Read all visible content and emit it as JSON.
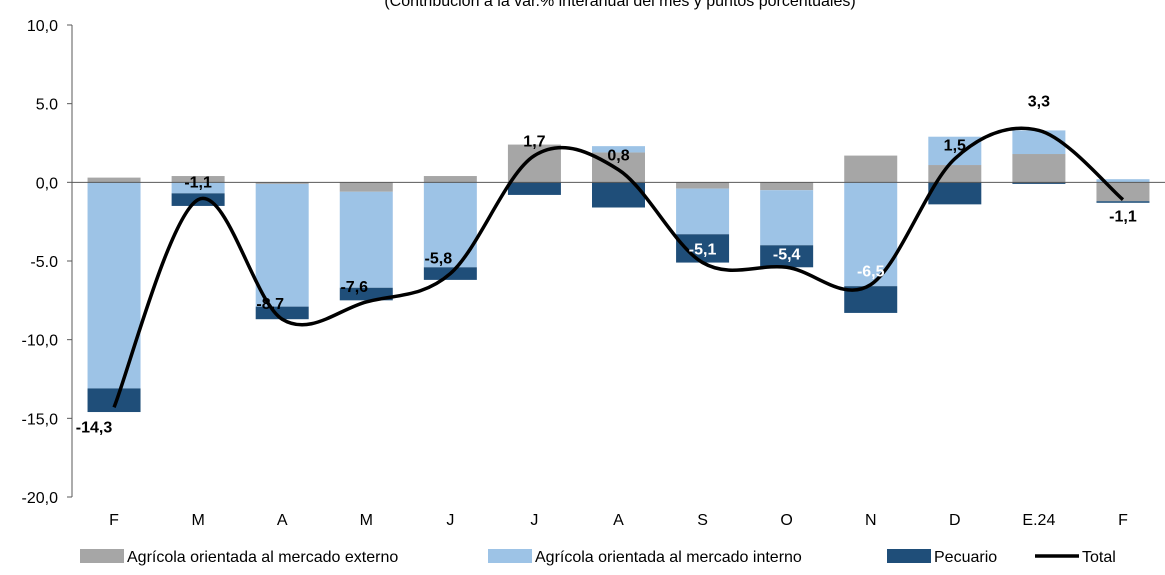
{
  "chart_data": {
    "type": "bar",
    "title": "(Contribución a la var.% interanual del mes y puntos porcentuales)",
    "categories": [
      "F",
      "M",
      "A",
      "M",
      "J",
      "J",
      "A",
      "S",
      "O",
      "N",
      "D",
      "E.24",
      "F"
    ],
    "ylim": [
      -20,
      10
    ],
    "yticks": [
      10,
      5,
      0,
      -5,
      -10,
      -15,
      -20
    ],
    "ytick_labels": [
      "10,0",
      "5.0",
      "0,0",
      "-5.0",
      "-10,0",
      "-15,0",
      "-20,0"
    ],
    "series": [
      {
        "name": "Agrícola orientada al mercado externo",
        "color": "#a6a6a6",
        "values": [
          0.3,
          0.4,
          -0.1,
          -0.6,
          0.4,
          2.4,
          1.9,
          -0.4,
          -0.5,
          1.7,
          1.1,
          1.8,
          -1.2
        ]
      },
      {
        "name": "Agrícola orientada al mercado interno",
        "color": "#9dc3e6",
        "values": [
          -13.1,
          -0.7,
          -7.8,
          -6.1,
          -5.4,
          0.0,
          0.4,
          -2.9,
          -3.5,
          -6.6,
          1.8,
          1.5,
          0.2
        ]
      },
      {
        "name": "Pecuario",
        "color": "#1f4e79",
        "values": [
          -1.5,
          -0.8,
          -0.8,
          -0.8,
          -0.8,
          -0.8,
          -1.6,
          -1.8,
          -1.4,
          -1.7,
          -1.4,
          -0.1,
          -0.1
        ]
      }
    ],
    "total": {
      "name": "Total",
      "color": "#000000",
      "values": [
        -14.3,
        -1.1,
        -8.7,
        -7.6,
        -5.8,
        1.7,
        0.8,
        -5.1,
        -5.4,
        -6.5,
        1.5,
        3.3,
        -1.1
      ],
      "labels": [
        "-14,3",
        "-1,1",
        "-8,7",
        "-7,6",
        "-5,8",
        "1,7",
        "0,8",
        "-5,1",
        "-5,4",
        "-6,5",
        "1,5",
        "3,3",
        "-1,1"
      ],
      "label_colors": [
        "#000000",
        "#000000",
        "#000000",
        "#000000",
        "#000000",
        "#000000",
        "#000000",
        "#ffffff",
        "#ffffff",
        "#ffffff",
        "#000000",
        "#000000",
        "#000000"
      ]
    },
    "legend_position": "bottom",
    "grid": false
  }
}
